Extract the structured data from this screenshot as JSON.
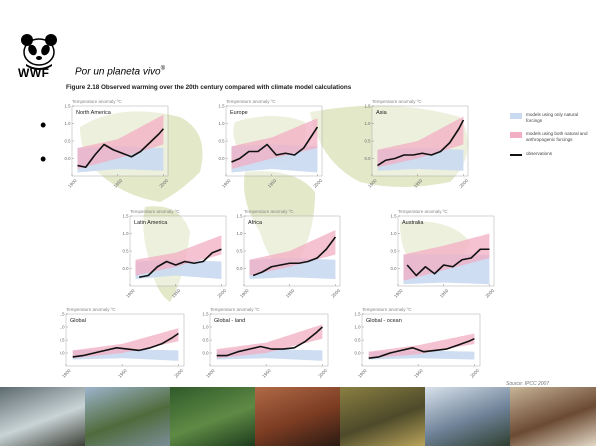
{
  "header": {
    "org": "WWF",
    "tagline": "Por un planeta vivo",
    "tagline_mark": "®",
    "figure_title": "Figure 2.18 Observed warming over the 20th century compared with climate model calculations"
  },
  "legend": {
    "blue_label": "models using only natural forcings",
    "pink_label": "models using both natural and anthropogenic forcings",
    "line_label": "observations"
  },
  "source": "Source: IPCC 2007",
  "colors": {
    "natural_band": "#c9d9ef",
    "anthro_band": "#f2aec3",
    "overlap_band": "#c8a8cf",
    "observed_line": "#111111",
    "continent": "#e3e8c9"
  },
  "chart_data": [
    {
      "type": "area",
      "region": "North America",
      "ylabel": "Temperature anomaly ºC",
      "x": [
        1900,
        1950,
        2000
      ],
      "ylim": [
        -0.5,
        1.5
      ],
      "yticks": [
        0,
        0.5,
        1.0,
        1.5
      ],
      "yticklabels": [
        "0.0",
        "0.5",
        "1.0",
        "1.5"
      ],
      "observed": {
        "x": [
          1906,
          1915,
          1925,
          1935,
          1945,
          1955,
          1965,
          1975,
          1985,
          1995,
          2000
        ],
        "y": [
          -0.2,
          -0.25,
          0.1,
          0.4,
          0.25,
          0.15,
          0.05,
          0.2,
          0.45,
          0.7,
          0.85
        ]
      },
      "natural_range": {
        "x": [
          1906,
          1950,
          2000
        ],
        "low": [
          -0.4,
          -0.3,
          -0.35
        ],
        "high": [
          0.3,
          0.35,
          0.3
        ]
      },
      "anthro_range": {
        "x": [
          1906,
          1950,
          2000
        ],
        "low": [
          -0.3,
          0.0,
          0.4
        ],
        "high": [
          0.3,
          0.55,
          1.25
        ]
      }
    },
    {
      "type": "area",
      "region": "Europe",
      "ylabel": "Temperature anomaly ºC",
      "x": [
        1900,
        1950,
        2000
      ],
      "ylim": [
        -0.5,
        1.5
      ],
      "yticks": [
        0,
        0.5,
        1.0,
        1.5
      ],
      "yticklabels": [
        "0.0",
        "0.5",
        "1.0",
        "1.5"
      ],
      "observed": {
        "x": [
          1906,
          1915,
          1925,
          1935,
          1945,
          1955,
          1965,
          1975,
          1985,
          1995,
          2000
        ],
        "y": [
          -0.1,
          0.0,
          0.2,
          0.2,
          0.4,
          0.1,
          0.15,
          0.1,
          0.3,
          0.7,
          0.9
        ]
      },
      "natural_range": {
        "x": [
          1906,
          1950,
          2000
        ],
        "low": [
          -0.4,
          -0.3,
          -0.4
        ],
        "high": [
          0.35,
          0.4,
          0.35
        ]
      },
      "anthro_range": {
        "x": [
          1906,
          1950,
          2000
        ],
        "low": [
          -0.3,
          0.0,
          0.3
        ],
        "high": [
          0.35,
          0.6,
          1.15
        ]
      }
    },
    {
      "type": "area",
      "region": "Asia",
      "ylabel": "Temperature anomaly ºC",
      "x": [
        1900,
        1950,
        2000
      ],
      "ylim": [
        -0.5,
        1.5
      ],
      "yticks": [
        0,
        0.5,
        1.0,
        1.5
      ],
      "yticklabels": [
        "0.0",
        "0.5",
        "1.0",
        "1.5"
      ],
      "observed": {
        "x": [
          1906,
          1915,
          1925,
          1935,
          1945,
          1955,
          1965,
          1975,
          1985,
          1995,
          2000
        ],
        "y": [
          -0.2,
          -0.05,
          0.0,
          0.1,
          0.1,
          0.15,
          0.1,
          0.2,
          0.45,
          0.85,
          1.1
        ]
      },
      "natural_range": {
        "x": [
          1906,
          1950,
          2000
        ],
        "low": [
          -0.35,
          -0.3,
          -0.35
        ],
        "high": [
          0.25,
          0.3,
          0.25
        ]
      },
      "anthro_range": {
        "x": [
          1906,
          1950,
          2000
        ],
        "low": [
          -0.25,
          0.0,
          0.4
        ],
        "high": [
          0.25,
          0.5,
          1.2
        ]
      }
    },
    {
      "type": "area",
      "region": "Latin America",
      "ylabel": "Temperature anomaly ºC",
      "x": [
        1900,
        1950,
        2000
      ],
      "ylim": [
        -0.5,
        1.5
      ],
      "yticks": [
        0,
        0.5,
        1.0,
        1.5
      ],
      "yticklabels": [
        "0.0",
        "0.5",
        "1.0",
        "1.5"
      ],
      "observed": {
        "x": [
          1910,
          1920,
          1930,
          1940,
          1950,
          1960,
          1970,
          1980,
          1990,
          2000
        ],
        "y": [
          -0.25,
          -0.2,
          0.05,
          0.2,
          0.1,
          0.2,
          0.15,
          0.2,
          0.45,
          0.55
        ]
      },
      "natural_range": {
        "x": [
          1906,
          1950,
          2000
        ],
        "low": [
          -0.3,
          -0.2,
          -0.3
        ],
        "high": [
          0.2,
          0.25,
          0.2
        ]
      },
      "anthro_range": {
        "x": [
          1906,
          1950,
          2000
        ],
        "low": [
          -0.2,
          0.05,
          0.4
        ],
        "high": [
          0.25,
          0.45,
          0.95
        ]
      }
    },
    {
      "type": "area",
      "region": "Africa",
      "ylabel": "Temperature anomaly ºC",
      "x": [
        1900,
        1950,
        2000
      ],
      "ylim": [
        -0.5,
        1.5
      ],
      "yticks": [
        0,
        0.5,
        1.0,
        1.5
      ],
      "yticklabels": [
        "0.0",
        "0.5",
        "1.0",
        "1.5"
      ],
      "observed": {
        "x": [
          1910,
          1920,
          1930,
          1940,
          1950,
          1960,
          1970,
          1980,
          1990,
          2000
        ],
        "y": [
          -0.2,
          -0.1,
          0.05,
          0.1,
          0.15,
          0.15,
          0.2,
          0.3,
          0.55,
          0.9
        ]
      },
      "natural_range": {
        "x": [
          1906,
          1950,
          2000
        ],
        "low": [
          -0.3,
          -0.25,
          -0.3
        ],
        "high": [
          0.25,
          0.3,
          0.25
        ]
      },
      "anthro_range": {
        "x": [
          1906,
          1950,
          2000
        ],
        "low": [
          -0.2,
          0.05,
          0.4
        ],
        "high": [
          0.25,
          0.5,
          1.1
        ]
      }
    },
    {
      "type": "area",
      "region": "Australia",
      "ylabel": "Temperature anomaly ºC",
      "x": [
        1900,
        1950,
        2000
      ],
      "ylim": [
        -0.5,
        1.5
      ],
      "yticks": [
        0,
        0.5,
        1.0,
        1.5
      ],
      "yticklabels": [
        "0.0",
        "0.5",
        "1.0",
        "1.5"
      ],
      "observed": {
        "x": [
          1910,
          1920,
          1930,
          1940,
          1950,
          1960,
          1970,
          1980,
          1990,
          2000
        ],
        "y": [
          0.1,
          -0.2,
          0.05,
          -0.15,
          0.1,
          0.05,
          0.25,
          0.3,
          0.55,
          0.55
        ]
      },
      "natural_range": {
        "x": [
          1906,
          1950,
          2000
        ],
        "low": [
          -0.45,
          -0.4,
          -0.45
        ],
        "high": [
          0.4,
          0.4,
          0.4
        ]
      },
      "anthro_range": {
        "x": [
          1906,
          1950,
          2000
        ],
        "low": [
          -0.35,
          -0.05,
          0.3
        ],
        "high": [
          0.4,
          0.65,
          1.0
        ]
      }
    },
    {
      "type": "area",
      "region": "Global",
      "ylabel": "Temperature anomaly ºC",
      "x": [
        1900,
        1950,
        2000
      ],
      "ylim": [
        -0.5,
        1.5
      ],
      "yticks": [
        0,
        0.5,
        1.0,
        1.5
      ],
      "yticklabels": [
        "0.0",
        "0.5",
        "1.0",
        "1.5"
      ],
      "observed": {
        "x": [
          1906,
          1915,
          1925,
          1935,
          1945,
          1955,
          1965,
          1975,
          1985,
          1995,
          2000
        ],
        "y": [
          -0.15,
          -0.1,
          0.0,
          0.1,
          0.2,
          0.15,
          0.1,
          0.2,
          0.35,
          0.6,
          0.75
        ]
      },
      "natural_range": {
        "x": [
          1906,
          1950,
          2000
        ],
        "low": [
          -0.25,
          -0.2,
          -0.3
        ],
        "high": [
          0.1,
          0.15,
          0.1
        ]
      },
      "anthro_range": {
        "x": [
          1906,
          1950,
          2000
        ],
        "low": [
          -0.2,
          0.0,
          0.45
        ],
        "high": [
          0.1,
          0.35,
          0.95
        ]
      }
    },
    {
      "type": "area",
      "region": "Global - land",
      "ylabel": "Temperature anomaly ºC",
      "x": [
        1900,
        1950,
        2000
      ],
      "ylim": [
        -0.5,
        1.5
      ],
      "yticks": [
        0,
        0.5,
        1.0,
        1.5
      ],
      "yticklabels": [
        "0.0",
        "0.5",
        "1.0",
        "1.5"
      ],
      "observed": {
        "x": [
          1906,
          1915,
          1925,
          1935,
          1945,
          1955,
          1965,
          1975,
          1985,
          1995,
          2000
        ],
        "y": [
          -0.1,
          -0.1,
          0.05,
          0.15,
          0.25,
          0.15,
          0.15,
          0.2,
          0.45,
          0.8,
          1.0
        ]
      },
      "natural_range": {
        "x": [
          1906,
          1950,
          2000
        ],
        "low": [
          -0.25,
          -0.2,
          -0.3
        ],
        "high": [
          0.1,
          0.15,
          0.1
        ]
      },
      "anthro_range": {
        "x": [
          1906,
          1950,
          2000
        ],
        "low": [
          -0.2,
          0.0,
          0.55
        ],
        "high": [
          0.15,
          0.4,
          1.1
        ]
      }
    },
    {
      "type": "area",
      "region": "Global - ocean",
      "ylabel": "Temperature anomaly ºC",
      "x": [
        1900,
        1950,
        2000
      ],
      "ylim": [
        -0.5,
        1.5
      ],
      "yticks": [
        0,
        0.5,
        1.0,
        1.5
      ],
      "yticklabels": [
        "0.0",
        "0.5",
        "1.0",
        "1.5"
      ],
      "observed": {
        "x": [
          1906,
          1915,
          1925,
          1935,
          1945,
          1955,
          1965,
          1975,
          1985,
          1995,
          2000
        ],
        "y": [
          -0.2,
          -0.15,
          0.0,
          0.1,
          0.2,
          0.05,
          0.1,
          0.15,
          0.3,
          0.45,
          0.55
        ]
      },
      "natural_range": {
        "x": [
          1906,
          1950,
          2000
        ],
        "low": [
          -0.25,
          -0.2,
          -0.25
        ],
        "high": [
          0.05,
          0.1,
          0.05
        ]
      },
      "anthro_range": {
        "x": [
          1906,
          1950,
          2000
        ],
        "low": [
          -0.2,
          -0.05,
          0.35
        ],
        "high": [
          0.05,
          0.3,
          0.75
        ]
      }
    }
  ],
  "photos": [
    {
      "name": "coastal-rocks-photo",
      "colors": [
        "#5d6a6e",
        "#c9d4d6",
        "#3b3f36"
      ]
    },
    {
      "name": "wetland-trees-photo",
      "colors": [
        "#9db4cc",
        "#4f6b3c",
        "#7a8e97"
      ]
    },
    {
      "name": "forest-valley-photo",
      "colors": [
        "#2f5a2a",
        "#5f8a45",
        "#1d3b1c"
      ]
    },
    {
      "name": "child-face-photo",
      "colors": [
        "#b06a46",
        "#7a3b22",
        "#2a1a12"
      ]
    },
    {
      "name": "jaguar-photo",
      "colors": [
        "#8a7f42",
        "#4e4a2a",
        "#b9a45a"
      ]
    },
    {
      "name": "mountain-lake-photo",
      "colors": [
        "#d9e2ec",
        "#6e8298",
        "#2f3e2f"
      ]
    },
    {
      "name": "people-photo",
      "colors": [
        "#c7b497",
        "#6b4a33",
        "#e3d8c6"
      ]
    }
  ]
}
